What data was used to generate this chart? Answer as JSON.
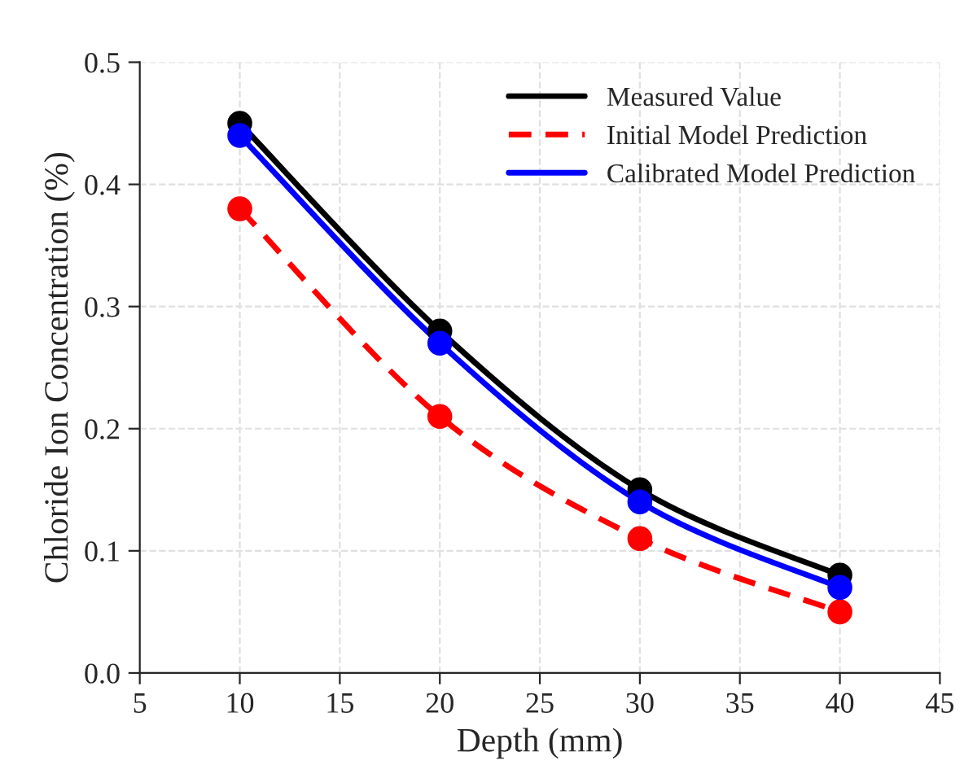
{
  "chart_data": {
    "type": "line",
    "xlabel": "Depth (mm)",
    "ylabel": "Chloride Ion Concentration (%)",
    "x": [
      10,
      20,
      30,
      40
    ],
    "series": [
      {
        "name": "Measured Value",
        "color": "#000000",
        "values": [
          0.45,
          0.28,
          0.15,
          0.08
        ],
        "line_style": "solid"
      },
      {
        "name": "Initial Model Prediction",
        "color": "#ff0000",
        "values": [
          0.38,
          0.21,
          0.11,
          0.05
        ],
        "line_style": "dashed"
      },
      {
        "name": "Calibrated Model Prediction",
        "color": "#0000ff",
        "values": [
          0.44,
          0.27,
          0.14,
          0.07
        ],
        "line_style": "solid"
      }
    ],
    "xlim": [
      5,
      45
    ],
    "xticks": [
      5,
      10,
      15,
      20,
      25,
      30,
      35,
      40,
      45
    ],
    "ylim": [
      0,
      0.5
    ],
    "yticks": [
      {
        "value": 0,
        "label": "0.0"
      },
      0.1,
      0.2,
      0.3,
      0.4,
      0.5
    ],
    "grid": true,
    "legend": "top right",
    "marker": "circle"
  }
}
